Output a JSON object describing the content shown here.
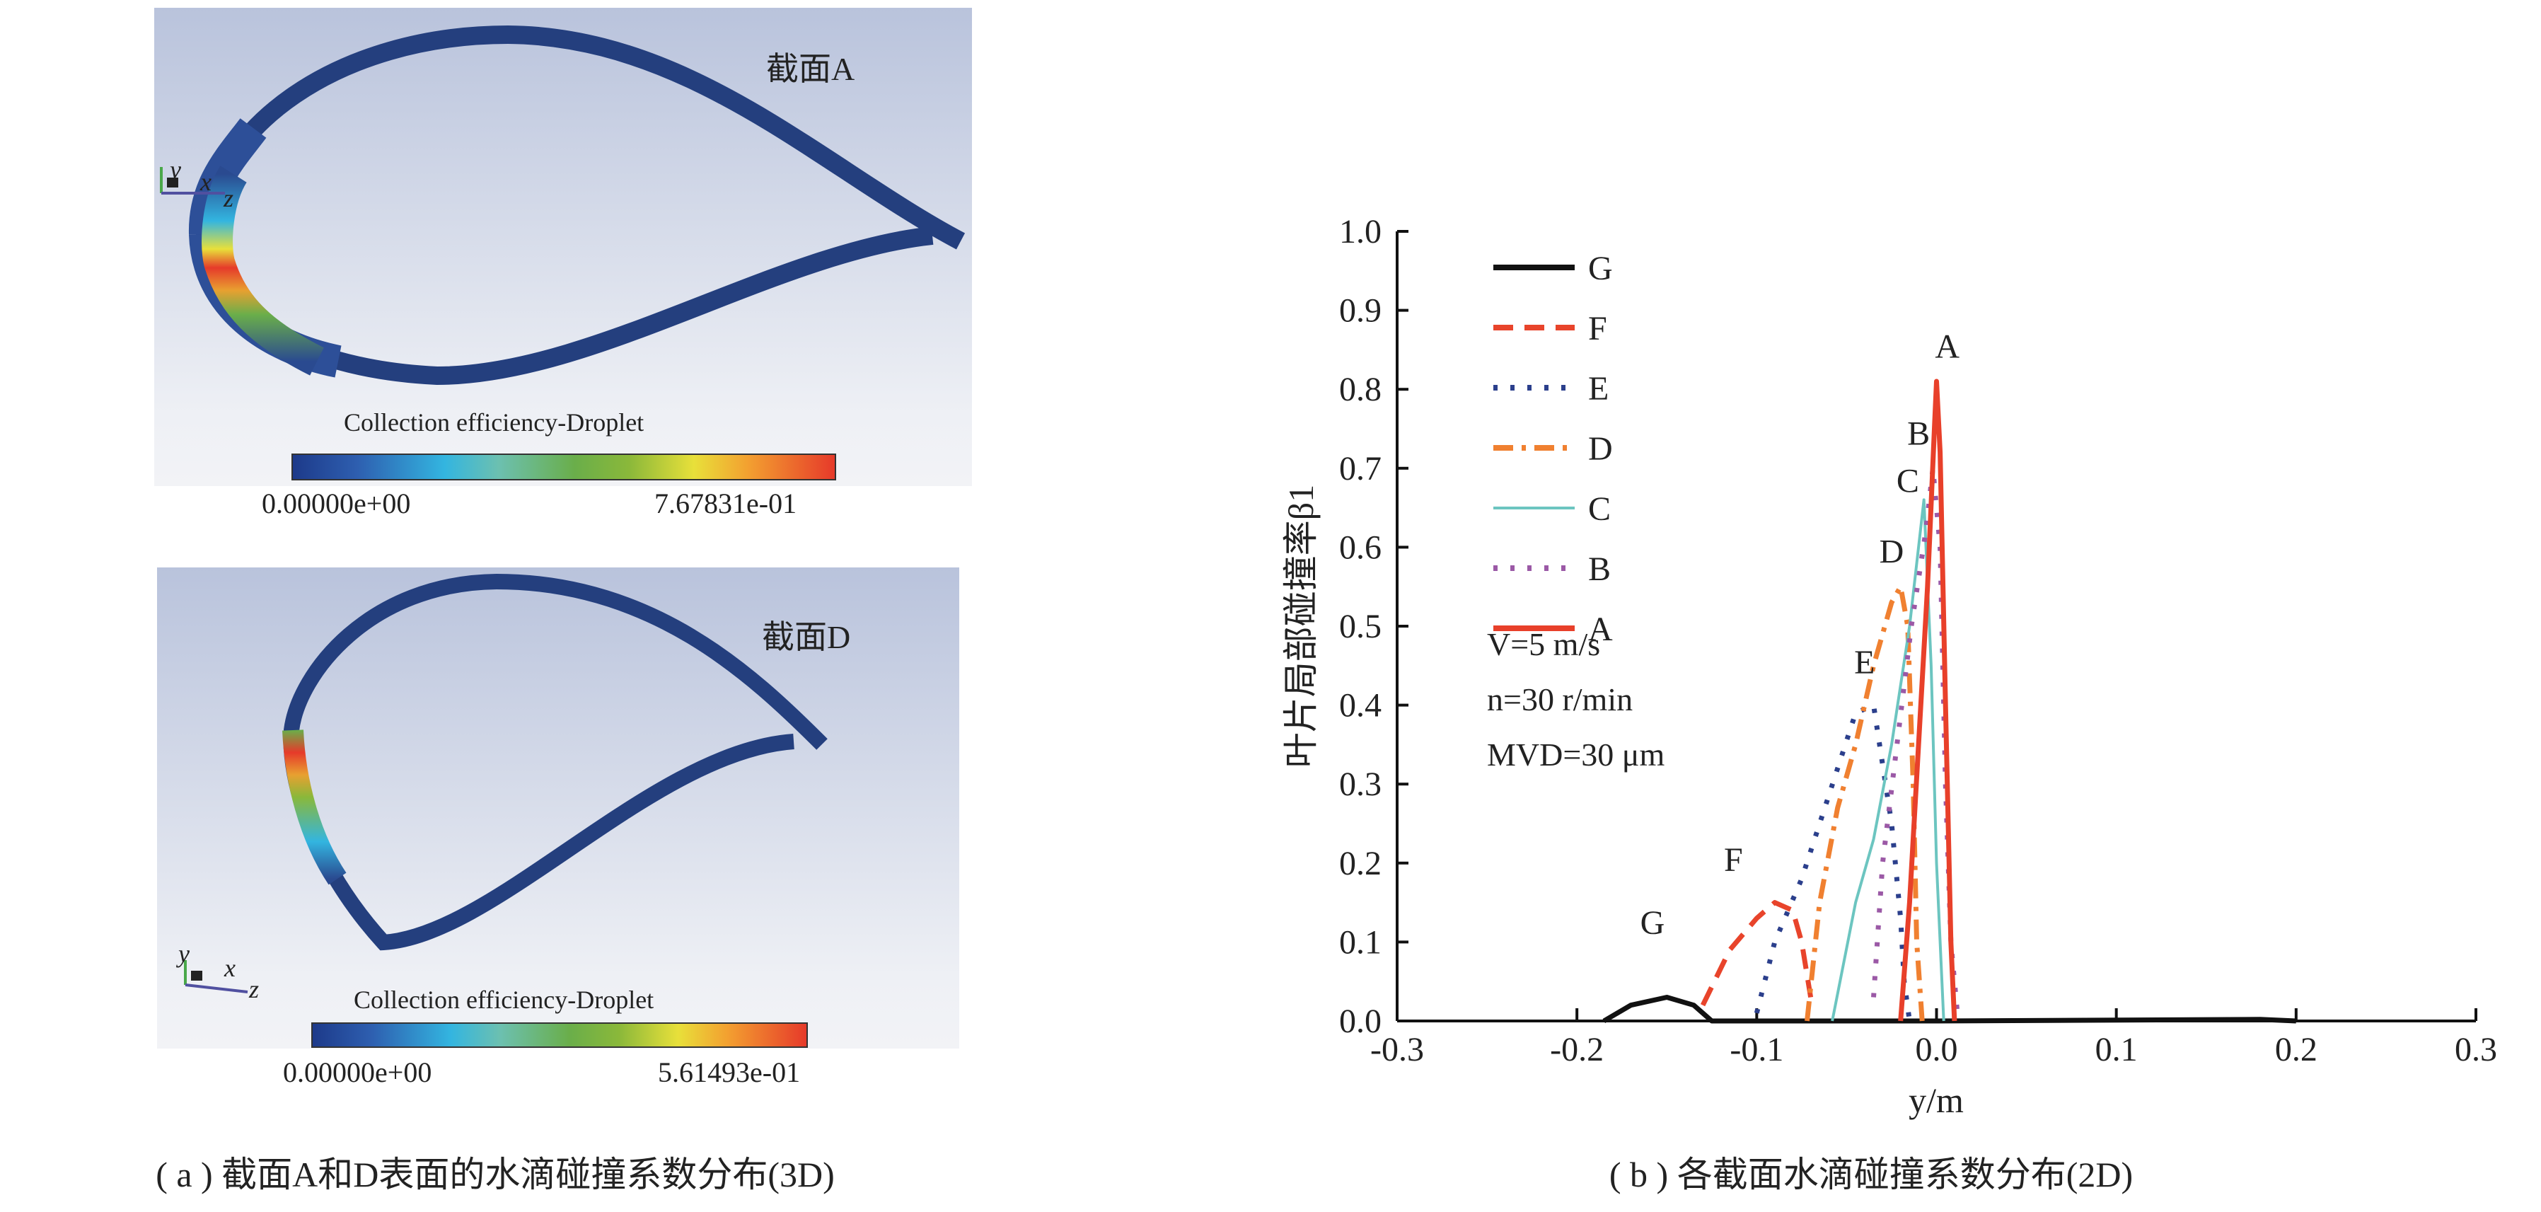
{
  "panel_a": {
    "section_label": "截面A",
    "colorbar_title": "Collection efficiency-Droplet",
    "colorbar_min": "0.00000e+00",
    "colorbar_max": "7.67831e-01",
    "axes": {
      "y": "y",
      "x": "x",
      "z": "z"
    }
  },
  "panel_d": {
    "section_label": "截面D",
    "colorbar_title": "Collection efficiency-Droplet",
    "colorbar_min": "0.00000e+00",
    "colorbar_max": "5.61493e-01",
    "axes": {
      "y": "y",
      "x": "x",
      "z": "z"
    }
  },
  "colormap": [
    "#1d3a8a",
    "#33b5e0",
    "#6aae4a",
    "#e8e03a",
    "#e63a2a"
  ],
  "captions": {
    "a": "( a ) 截面A和D表面的水滴碰撞系数分布(3D)",
    "b": "( b ) 各截面水滴碰撞系数分布(2D)"
  },
  "chart_data": {
    "type": "line",
    "title": "",
    "xlabel": "y/m",
    "ylabel": "叶片局部碰撞率β1",
    "xlim": [
      -0.3,
      0.3
    ],
    "ylim": [
      0,
      1.0
    ],
    "xticks": [
      "-0.3",
      "-0.2",
      "-0.1",
      "0.0",
      "0.1",
      "0.2",
      "0.3"
    ],
    "yticks": [
      "0.0",
      "0.1",
      "0.2",
      "0.3",
      "0.4",
      "0.5",
      "0.6",
      "0.7",
      "0.8",
      "0.9",
      "1.0"
    ],
    "grid": false,
    "legend_position": "top-left",
    "parameters": [
      "V=5 m/s",
      "n=30 r/min",
      "MVD=30 μm"
    ],
    "series": [
      {
        "name": "G",
        "color": "#111111",
        "style": "solid",
        "x": [
          -0.185,
          -0.17,
          -0.15,
          -0.135,
          -0.125,
          -0.1,
          0.0,
          0.18,
          0.2
        ],
        "y": [
          0,
          0.02,
          0.03,
          0.02,
          0,
          0,
          0,
          0.002,
          0
        ]
      },
      {
        "name": "F",
        "color": "#e8442b",
        "style": "dashed",
        "x": [
          -0.13,
          -0.115,
          -0.1,
          -0.09,
          -0.08,
          -0.075,
          -0.07
        ],
        "y": [
          0.02,
          0.09,
          0.13,
          0.15,
          0.14,
          0.1,
          0.03
        ]
      },
      {
        "name": "E",
        "color": "#2b3f8c",
        "style": "dotted",
        "x": [
          -0.1,
          -0.09,
          -0.075,
          -0.065,
          -0.055,
          -0.045,
          -0.035,
          -0.025,
          -0.02,
          -0.018,
          -0.015
        ],
        "y": [
          0.01,
          0.1,
          0.18,
          0.25,
          0.32,
          0.39,
          0.4,
          0.25,
          0.13,
          0.05,
          0
        ]
      },
      {
        "name": "D",
        "color": "#f08030",
        "style": "dashdot",
        "x": [
          -0.072,
          -0.065,
          -0.055,
          -0.045,
          -0.035,
          -0.025,
          -0.02,
          -0.016,
          -0.013,
          -0.011,
          -0.008
        ],
        "y": [
          0,
          0.15,
          0.27,
          0.35,
          0.45,
          0.53,
          0.55,
          0.5,
          0.3,
          0.1,
          0
        ]
      },
      {
        "name": "C",
        "color": "#6cc5c0",
        "style": "solid",
        "x": [
          -0.058,
          -0.045,
          -0.035,
          -0.025,
          -0.015,
          -0.007,
          -0.003,
          0.0,
          0.004
        ],
        "y": [
          0,
          0.15,
          0.23,
          0.35,
          0.5,
          0.66,
          0.45,
          0.2,
          0
        ]
      },
      {
        "name": "B",
        "color": "#9b59a6",
        "style": "dotted",
        "x": [
          -0.035,
          -0.03,
          -0.022,
          -0.014,
          -0.006,
          -0.002,
          0.002,
          0.005,
          0.008,
          0.012
        ],
        "y": [
          0.03,
          0.2,
          0.35,
          0.5,
          0.62,
          0.7,
          0.6,
          0.3,
          0.1,
          0
        ]
      },
      {
        "name": "A",
        "color": "#e8402a",
        "style": "solid",
        "x": [
          -0.02,
          -0.015,
          -0.01,
          -0.005,
          -0.001,
          0.0,
          0.002,
          0.005,
          0.008,
          0.01
        ],
        "y": [
          0,
          0.15,
          0.35,
          0.55,
          0.76,
          0.81,
          0.72,
          0.4,
          0.1,
          0
        ]
      }
    ],
    "annotations": [
      {
        "text": "A",
        "x": 0.006,
        "y": 0.84
      },
      {
        "text": "B",
        "x": -0.01,
        "y": 0.73
      },
      {
        "text": "C",
        "x": -0.016,
        "y": 0.67
      },
      {
        "text": "D",
        "x": -0.025,
        "y": 0.58
      },
      {
        "text": "E",
        "x": -0.04,
        "y": 0.44
      },
      {
        "text": "F",
        "x": -0.113,
        "y": 0.19
      },
      {
        "text": "G",
        "x": -0.158,
        "y": 0.11
      }
    ]
  }
}
